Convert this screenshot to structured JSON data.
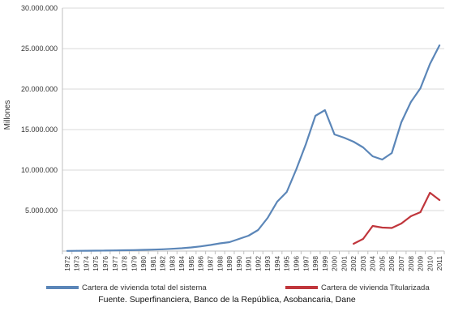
{
  "chart_data": {
    "type": "line",
    "ylabel": "Millones",
    "xlabel": "",
    "ylim": [
      0,
      30000000
    ],
    "yticks": [
      {
        "value": 0,
        "label": ""
      },
      {
        "value": 5000000,
        "label": "5.000.000"
      },
      {
        "value": 10000000,
        "label": "10.000.000"
      },
      {
        "value": 15000000,
        "label": "15.000.000"
      },
      {
        "value": 20000000,
        "label": "20.000.000"
      },
      {
        "value": 25000000,
        "label": "25.000.000"
      },
      {
        "value": 30000000,
        "label": "30.000.000"
      }
    ],
    "grid": true,
    "legend_position": "bottom",
    "x": [
      "1972",
      "1973",
      "1974",
      "1975",
      "1976",
      "1977",
      "1978",
      "1979",
      "1980",
      "1981",
      "1982",
      "1983",
      "1984",
      "1985",
      "1986",
      "1987",
      "1988",
      "1989",
      "1990",
      "1991",
      "1992",
      "1993",
      "1994",
      "1995",
      "1996",
      "1997",
      "1998",
      "1999",
      "2000",
      "2001",
      "2002",
      "2003",
      "2004",
      "2005",
      "2006",
      "2007",
      "2008",
      "2009",
      "2010",
      "2011"
    ],
    "series": [
      {
        "name": "Cartera de vivienda total del sistema",
        "color": "#5b86b8",
        "values": [
          20000,
          30000,
          40000,
          50000,
          60000,
          80000,
          100000,
          120000,
          150000,
          180000,
          220000,
          280000,
          350000,
          450000,
          580000,
          750000,
          950000,
          1100000,
          1500000,
          1900000,
          2600000,
          4100000,
          6100000,
          7300000,
          10100000,
          13200000,
          16700000,
          17400000,
          14400000,
          14000000,
          13500000,
          12800000,
          11700000,
          11300000,
          12100000,
          15900000,
          18400000,
          20100000,
          23100000,
          25400000
        ]
      },
      {
        "name": "Cartera de vivienda Titularizada",
        "color": "#c0363c",
        "values": [
          null,
          null,
          null,
          null,
          null,
          null,
          null,
          null,
          null,
          null,
          null,
          null,
          null,
          null,
          null,
          null,
          null,
          null,
          null,
          null,
          null,
          null,
          null,
          null,
          null,
          null,
          null,
          null,
          null,
          null,
          900000,
          1500000,
          3100000,
          2900000,
          2850000,
          3400000,
          4300000,
          4800000,
          7200000,
          6300000
        ]
      }
    ]
  },
  "source_note": "Fuente. Superfinanciera, Banco de la República, Asobancaria, Dane"
}
